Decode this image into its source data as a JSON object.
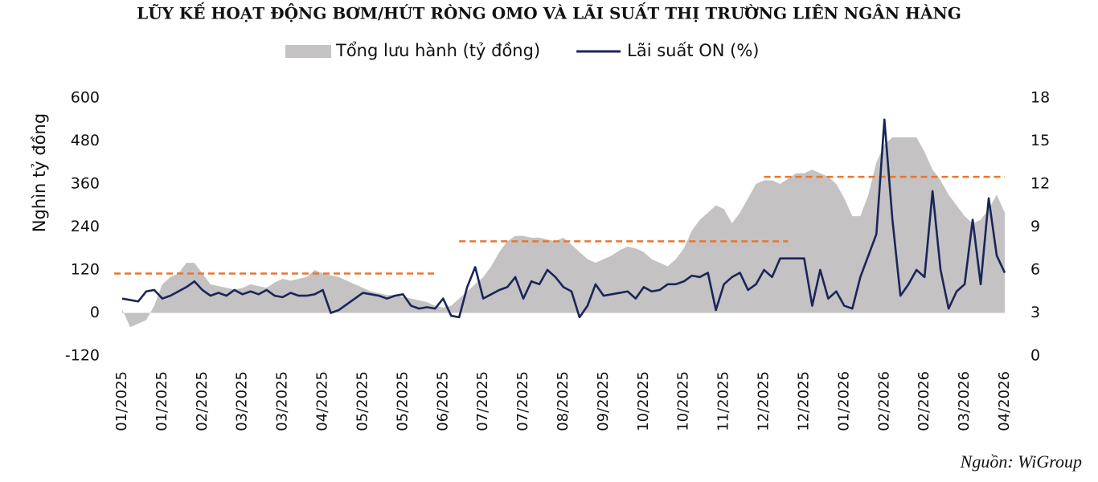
{
  "chart_data": {
    "type": "area-line",
    "title": "LŨY KẾ HOẠT ĐỘNG BƠM/HÚT RÒNG OMO VÀ LÃI SUẤT THỊ TRƯỜNG LIÊN NGÂN HÀNG",
    "y_label": "Nghìn tỷ đồng",
    "source": "Nguồn: WiGroup",
    "categories": [
      "01/2025",
      null,
      null,
      null,
      null,
      "01/2025",
      null,
      null,
      null,
      null,
      "02/2025",
      null,
      null,
      null,
      null,
      "03/2025",
      null,
      null,
      null,
      null,
      "03/2025",
      null,
      null,
      null,
      null,
      "04/2025",
      null,
      null,
      null,
      null,
      "05/2025",
      null,
      null,
      null,
      null,
      "05/2025",
      null,
      null,
      null,
      null,
      "06/2025",
      null,
      null,
      null,
      null,
      "07/2025",
      null,
      null,
      null,
      null,
      "07/2025",
      null,
      null,
      null,
      null,
      "08/2025",
      null,
      null,
      null,
      null,
      "09/2025",
      null,
      null,
      null,
      null,
      "10/2025",
      null,
      null,
      null,
      null,
      "10/2025",
      null,
      null,
      null,
      null,
      "11/2025",
      null,
      null,
      null,
      null,
      "12/2025",
      null,
      null,
      null,
      null,
      "12/2025",
      null,
      null,
      null,
      null,
      "01/2026",
      null,
      null,
      null,
      null,
      "02/2026",
      null,
      null,
      null,
      null,
      "02/2026",
      null,
      null,
      null,
      null,
      "03/2026",
      null,
      null,
      null,
      null,
      "04/2026"
    ],
    "series": [
      {
        "name": "Tổng lưu hành (tỷ đồng)",
        "color": "#c4c2c3",
        "kind": "area",
        "axis": "y",
        "values": [
          10,
          -40,
          -30,
          -20,
          20,
          80,
          100,
          110,
          140,
          140,
          110,
          80,
          75,
          70,
          65,
          70,
          80,
          75,
          70,
          85,
          95,
          90,
          95,
          100,
          120,
          110,
          105,
          100,
          90,
          80,
          70,
          60,
          55,
          50,
          50,
          45,
          40,
          35,
          30,
          20,
          15,
          20,
          40,
          60,
          80,
          100,
          130,
          170,
          200,
          215,
          215,
          210,
          210,
          205,
          200,
          210,
          190,
          170,
          150,
          140,
          150,
          160,
          175,
          185,
          180,
          170,
          150,
          140,
          130,
          150,
          180,
          230,
          260,
          280,
          300,
          290,
          250,
          280,
          320,
          360,
          370,
          370,
          360,
          375,
          390,
          390,
          400,
          390,
          380,
          360,
          320,
          270,
          270,
          330,
          420,
          470,
          490,
          490,
          490,
          490,
          450,
          400,
          370,
          330,
          300,
          270,
          250,
          260,
          290,
          330,
          280
        ]
      },
      {
        "name": "Lãi suất ON (%)",
        "color": "#1b2559",
        "kind": "line",
        "axis": "y2",
        "values": [
          4.0,
          3.9,
          3.8,
          4.5,
          4.6,
          4.0,
          4.2,
          4.5,
          4.8,
          5.2,
          4.6,
          4.2,
          4.4,
          4.2,
          4.6,
          4.3,
          4.5,
          4.3,
          4.6,
          4.2,
          4.1,
          4.4,
          4.2,
          4.2,
          4.3,
          4.6,
          3.0,
          3.2,
          3.6,
          4.0,
          4.4,
          4.3,
          4.2,
          4.0,
          4.2,
          4.3,
          3.5,
          3.3,
          3.4,
          3.3,
          4.0,
          2.8,
          2.7,
          4.8,
          6.2,
          4.0,
          4.3,
          4.6,
          4.8,
          5.5,
          4.0,
          5.2,
          5.0,
          6.0,
          5.5,
          4.8,
          4.5,
          2.7,
          3.5,
          5.0,
          4.2,
          4.3,
          4.4,
          4.5,
          4.0,
          4.8,
          4.5,
          4.6,
          5.0,
          5.0,
          5.2,
          5.6,
          5.5,
          5.8,
          3.2,
          5.0,
          5.5,
          5.8,
          4.6,
          5.0,
          6.0,
          5.5,
          6.8,
          6.8,
          6.8,
          6.8,
          3.5,
          6.0,
          4.0,
          4.5,
          3.5,
          3.3,
          5.5,
          7.0,
          8.5,
          16.5,
          9.5,
          4.2,
          5.0,
          6.0,
          5.5,
          11.5,
          6.0,
          3.3,
          4.5,
          5.0,
          9.5,
          5.0,
          11.0,
          7.0,
          5.8
        ]
      }
    ],
    "reference_lines": [
      {
        "value": 110,
        "color": "#e8772e",
        "from": 0,
        "to": 39
      },
      {
        "value": 200,
        "color": "#e8772e",
        "from": 43,
        "to": 83
      },
      {
        "value": 380,
        "color": "#e8772e",
        "from": 81,
        "to": 110
      }
    ],
    "ylim": [
      -120,
      600
    ],
    "yticks": [
      -120,
      0,
      120,
      240,
      360,
      480,
      600
    ],
    "y2lim": [
      0,
      18
    ],
    "y2ticks": [
      0,
      3,
      6,
      9,
      12,
      15,
      18
    ]
  }
}
